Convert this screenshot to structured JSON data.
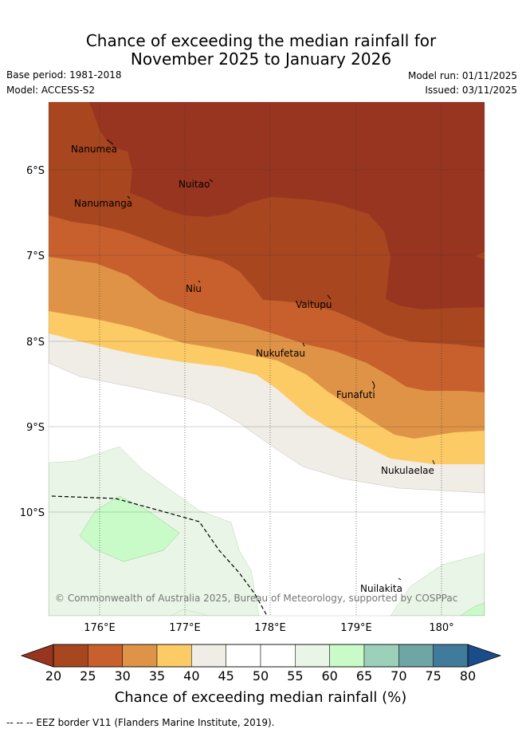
{
  "title": {
    "line1": "Chance of exceeding the median rainfall for",
    "line2": "November 2025 to January 2026"
  },
  "meta": {
    "base_period": "Base period: 1981-2018",
    "model": "Model: ACCESS-S2",
    "model_run": "Model run: 01/11/2025",
    "issued": "Issued: 03/11/2025"
  },
  "map": {
    "lon_ticks": [
      "176°E",
      "177°E",
      "178°E",
      "179°E",
      "180°"
    ],
    "lat_ticks": [
      "6°S",
      "7°S",
      "8°S",
      "9°S",
      "10°S"
    ],
    "places": [
      "Nanumea",
      "Nuitao",
      "Nanumanga",
      "Niu",
      "Vaitupu",
      "Nukufetau",
      "Funafuti",
      "Nukulaelae",
      "Nuilakita"
    ],
    "credit": "© Commonwealth of Australia 2025, Bureau of Meteorology, supported by COSPPac"
  },
  "colorbar": {
    "ticks": [
      "20",
      "25",
      "30",
      "35",
      "40",
      "45",
      "50",
      "55",
      "60",
      "65",
      "70",
      "75",
      "80"
    ],
    "colors": [
      "#a8461f",
      "#c8602d",
      "#df9346",
      "#fccb65",
      "#f0ece6",
      "#ffffff",
      "#ffffff",
      "#e9f5e6",
      "#c9fbc9",
      "#9dd0bb",
      "#6ea6a6",
      "#417b9b"
    ],
    "under_color": "#983520",
    "over_color": "#1b4c8a",
    "label": "Chance of exceeding median rainfall (%)"
  },
  "footer": "-- -- -- EEZ border V11 (Flanders Marine Institute, 2019)."
}
